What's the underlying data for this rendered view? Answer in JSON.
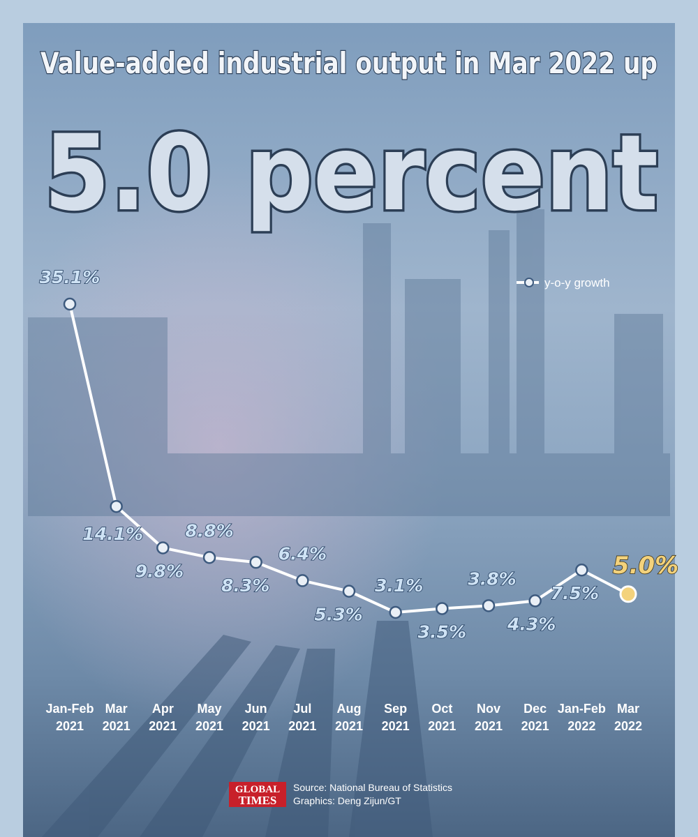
{
  "chart_data": {
    "type": "line",
    "title": "Value-added industrial output in Mar 2022 up",
    "subtitle": "5.0 percent",
    "categories": [
      "Jan-Feb 2021",
      "Mar 2021",
      "Apr 2021",
      "May 2021",
      "Jun 2021",
      "Jul 2021",
      "Aug 2021",
      "Sep 2021",
      "Oct 2021",
      "Nov 2021",
      "Dec 2021",
      "Jan-Feb 2022",
      "Mar 2022"
    ],
    "series": [
      {
        "name": "y-o-y growth",
        "color": "#ffffff",
        "highlight_color": "#f3d27c",
        "values": [
          35.1,
          14.1,
          9.8,
          8.8,
          8.3,
          6.4,
          5.3,
          3.1,
          3.5,
          3.8,
          4.3,
          7.5,
          5.0
        ],
        "value_labels": [
          "35.1%",
          "14.1%",
          "9.8%",
          "8.8%",
          "8.3%",
          "6.4%",
          "5.3%",
          "3.1%",
          "3.5%",
          "3.8%",
          "4.3%",
          "7.5%",
          "5.0%"
        ]
      }
    ],
    "source": "Source: National Bureau of Statistics",
    "credit": "Graphics: Deng Zijun/GT"
  },
  "logo": [
    "GLOBAL",
    "TIMES"
  ]
}
